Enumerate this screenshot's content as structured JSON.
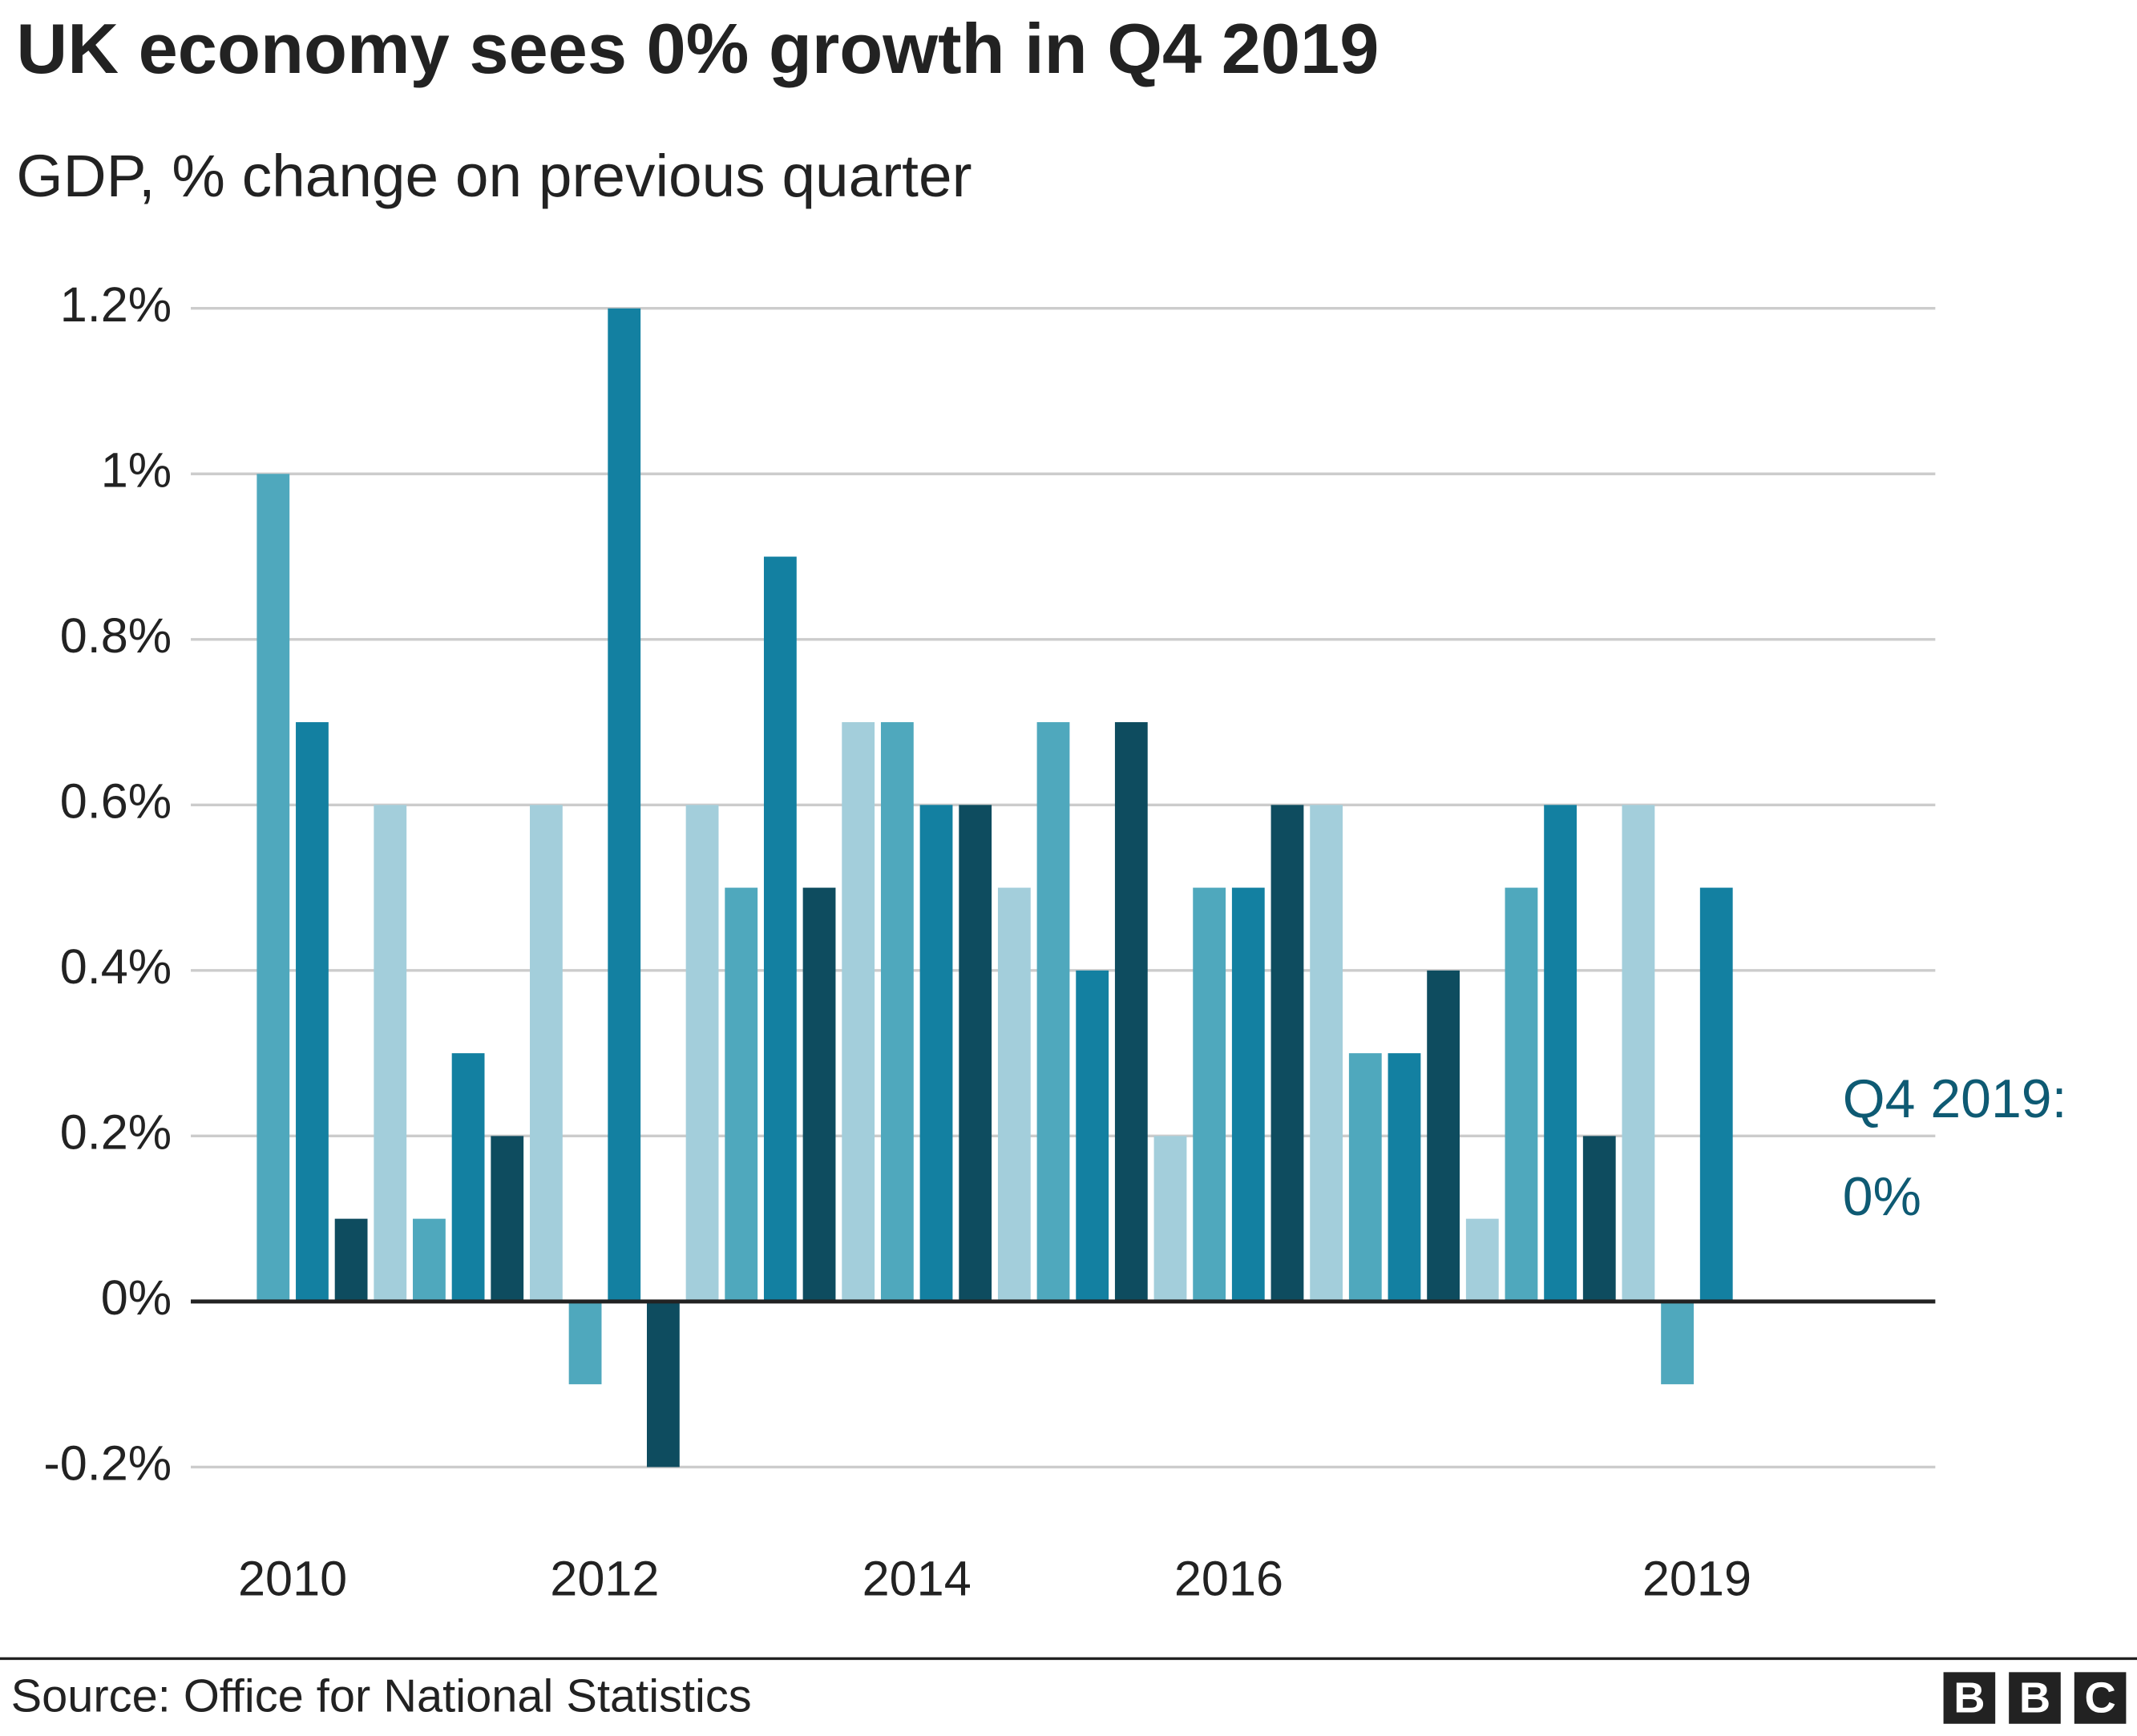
{
  "chart_data": {
    "type": "bar",
    "title": "UK economy sees 0% growth in Q4 2019",
    "subtitle": "GDP, % change on previous quarter",
    "categories": [
      null,
      "2010",
      null,
      null,
      null,
      null,
      null,
      null,
      null,
      "2012",
      null,
      null,
      null,
      null,
      null,
      null,
      null,
      "2014",
      null,
      null,
      null,
      null,
      null,
      null,
      null,
      "2016",
      null,
      null,
      null,
      null,
      null,
      null,
      null,
      null,
      null,
      null,
      null,
      "2019",
      null
    ],
    "values": [
      1.0,
      0.7,
      0.1,
      0.6,
      0.1,
      0.3,
      0.2,
      0.6,
      -0.1,
      1.2,
      -0.2,
      0.6,
      0.5,
      0.9,
      0.5,
      0.7,
      0.7,
      0.6,
      0.6,
      0.5,
      0.7,
      0.4,
      0.7,
      0.2,
      0.5,
      0.5,
      0.6,
      0.6,
      0.3,
      0.3,
      0.4,
      0.1,
      0.5,
      0.6,
      0.2,
      0.6,
      -0.1,
      0.5,
      0
    ],
    "colors": [
      "#4fa8bd",
      "#1380a1",
      "#0e4c5f",
      "#a3cedb",
      "#4fa8bd",
      "#1380a1",
      "#0e4c5f",
      "#a3cedb",
      "#4fa8bd",
      "#1380a1",
      "#0e4c5f",
      "#a3cedb",
      "#4fa8bd",
      "#1380a1",
      "#0e4c5f",
      "#a3cedb",
      "#4fa8bd",
      "#1380a1",
      "#0e4c5f",
      "#a3cedb",
      "#4fa8bd",
      "#1380a1",
      "#0e4c5f",
      "#a3cedb",
      "#4fa8bd",
      "#1380a1",
      "#0e4c5f",
      "#a3cedb",
      "#4fa8bd",
      "#1380a1",
      "#0e4c5f",
      "#a3cedb",
      "#4fa8bd",
      "#1380a1",
      "#0e4c5f",
      "#a3cedb",
      "#4fa8bd",
      "#1380a1",
      "#0e4c5f"
    ],
    "ylim": [
      -0.2,
      1.2
    ],
    "yticks": [
      {
        "value": -0.2,
        "label": "-0.2%"
      },
      {
        "value": 0,
        "label": "0%"
      },
      {
        "value": 0.2,
        "label": "0.2%"
      },
      {
        "value": 0.4,
        "label": "0.4%"
      },
      {
        "value": 0.6,
        "label": "0.6%"
      },
      {
        "value": 0.8,
        "label": "0.8%"
      },
      {
        "value": 1,
        "label": "1%"
      },
      {
        "value": 1.2,
        "label": "1.2%"
      }
    ],
    "grid": true,
    "annotation": [
      "Q4 2019:",
      "0%"
    ],
    "source": "Source: Office for National Statistics"
  },
  "logo": [
    "B",
    "B",
    "C"
  ]
}
